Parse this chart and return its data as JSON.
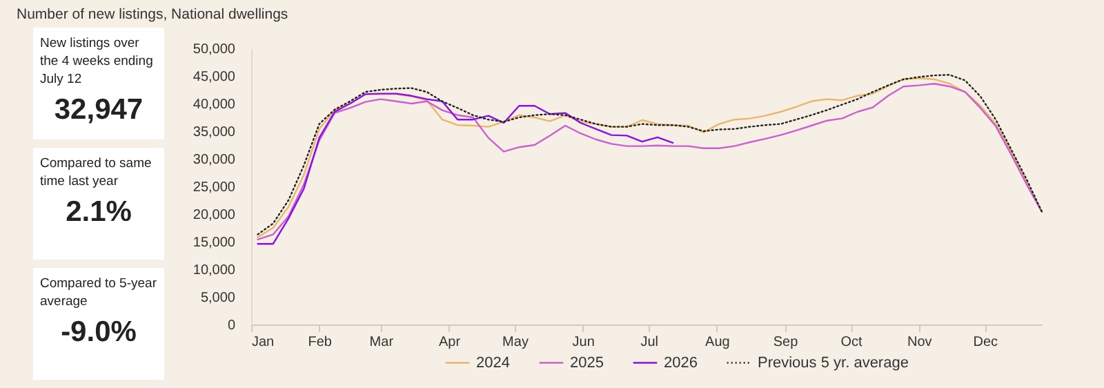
{
  "chart_data": [
    {
      "type": "other",
      "title": "New listings over the 4 weeks ending July 12",
      "annotations": [
        "32,947"
      ]
    },
    {
      "type": "other",
      "title": "Compared to same time last year",
      "annotations": [
        "2.1%"
      ]
    },
    {
      "type": "other",
      "title": "Compared to 5-year average",
      "annotations": [
        "-9.0%"
      ]
    },
    {
      "type": "line",
      "title": "Number of new listings, National dwellings",
      "x": [
        "--01-04",
        "--01-11",
        "--01-18",
        "--01-25",
        "--02-01",
        "--02-08",
        "--02-15",
        "--02-22",
        "--03-01",
        "--03-08",
        "--03-15",
        "--03-22",
        "--03-29",
        "--04-05",
        "--04-12",
        "--04-19",
        "--04-26",
        "--05-03",
        "--05-10",
        "--05-17",
        "--05-24",
        "--05-31",
        "--06-07",
        "--06-14",
        "--06-21",
        "--06-28",
        "--07-05",
        "--07-12",
        "--07-19",
        "--07-26",
        "--08-02",
        "--08-09",
        "--08-16",
        "--08-23",
        "--08-30",
        "--09-06",
        "--09-13",
        "--09-20",
        "--09-27",
        "--10-04",
        "--10-11",
        "--10-18",
        "--10-25",
        "--11-01",
        "--11-08",
        "--11-15",
        "--11-22",
        "--11-29",
        "--12-06",
        "--12-13",
        "--12-20",
        "--12-27"
      ],
      "series": [
        {
          "name": "2024",
          "color": "#e9b66c",
          "line_style": "solid",
          "values": [
            15800,
            17500,
            21300,
            27100,
            35400,
            38800,
            40000,
            41700,
            41700,
            41700,
            41300,
            40600,
            37100,
            36100,
            36000,
            35800,
            36700,
            37900,
            37500,
            36800,
            37900,
            36700,
            36300,
            35800,
            35800,
            37000,
            36300,
            36100,
            36000,
            34800,
            36300,
            37100,
            37300,
            37800,
            38500,
            39400,
            40400,
            40800,
            40600,
            41400,
            41800,
            43200,
            44400,
            44600,
            44400,
            43600,
            42100,
            39600,
            36300,
            31400,
            25900,
            20400
          ]
        },
        {
          "name": "2025",
          "color": "#cc5fd0",
          "line_style": "solid",
          "values": [
            15400,
            16300,
            19600,
            25400,
            33300,
            38300,
            39200,
            40300,
            40800,
            40400,
            40000,
            40400,
            38800,
            37900,
            37500,
            33800,
            31300,
            32100,
            32500,
            34200,
            36000,
            34600,
            33500,
            32700,
            32300,
            32300,
            32400,
            32300,
            32300,
            31900,
            31900,
            32300,
            33000,
            33600,
            34300,
            35100,
            36000,
            36900,
            37300,
            38500,
            39300,
            41400,
            43100,
            43300,
            43600,
            43100,
            42100,
            39200,
            35900,
            30800,
            25400,
            20400
          ]
        },
        {
          "name": "2026",
          "color": "#8a10e6",
          "line_style": "solid",
          "values": [
            14600,
            14600,
            19200,
            24600,
            33800,
            38500,
            40000,
            41700,
            41800,
            41800,
            41400,
            40800,
            40400,
            37100,
            37100,
            37800,
            36500,
            39600,
            39600,
            38100,
            38300,
            36500,
            35400,
            34300,
            34200,
            33100,
            33900,
            32900,
            null,
            null,
            null,
            null,
            null,
            null,
            null,
            null,
            null,
            null,
            null,
            null,
            null,
            null,
            null,
            null,
            null,
            null,
            null,
            null,
            null,
            null,
            null,
            null
          ]
        },
        {
          "name": "Previous 5 yr. average",
          "color": "#222222",
          "line_style": "dotted",
          "values": [
            16300,
            18300,
            22500,
            28800,
            36300,
            38900,
            40400,
            42100,
            42500,
            42700,
            42800,
            42100,
            40400,
            39200,
            37900,
            37100,
            36700,
            37500,
            37900,
            38100,
            37900,
            37100,
            36300,
            35800,
            35800,
            36300,
            36100,
            36100,
            35800,
            35000,
            35300,
            35400,
            35800,
            36100,
            36300,
            37100,
            37900,
            38800,
            39800,
            40800,
            42100,
            43300,
            44400,
            44800,
            45100,
            45200,
            44200,
            41300,
            37100,
            31700,
            26300,
            20400
          ]
        }
      ],
      "xlim": [
        "--01-01",
        "--12-27"
      ],
      "xticks": [
        {
          "value": "--01-01",
          "label": "Jan"
        },
        {
          "value": "--02-01",
          "label": "Feb"
        },
        {
          "value": "--03-01",
          "label": "Mar"
        },
        {
          "value": "--04-01",
          "label": "Apr"
        },
        {
          "value": "--05-01",
          "label": "May"
        },
        {
          "value": "--06-01",
          "label": "Jun"
        },
        {
          "value": "--07-01",
          "label": "Jul"
        },
        {
          "value": "--08-01",
          "label": "Aug"
        },
        {
          "value": "--09-01",
          "label": "Sep"
        },
        {
          "value": "--10-01",
          "label": "Oct"
        },
        {
          "value": "--11-01",
          "label": "Nov"
        },
        {
          "value": "--12-01",
          "label": "Dec"
        }
      ],
      "ylim": [
        0,
        50000
      ],
      "yticks": [
        0,
        {
          "value": 5000,
          "label": "5,000"
        },
        {
          "value": 10000,
          "label": "10,000"
        },
        {
          "value": 15000,
          "label": "15,000"
        },
        {
          "value": 20000,
          "label": "20,000"
        },
        {
          "value": 25000,
          "label": "25,000"
        },
        {
          "value": 30000,
          "label": "30,000"
        },
        {
          "value": 35000,
          "label": "35,000"
        },
        {
          "value": 40000,
          "label": "40,000"
        },
        {
          "value": 45000,
          "label": "45,000"
        },
        {
          "value": 50000,
          "label": "50,000"
        }
      ],
      "grid": false,
      "legend": "bottom"
    }
  ]
}
